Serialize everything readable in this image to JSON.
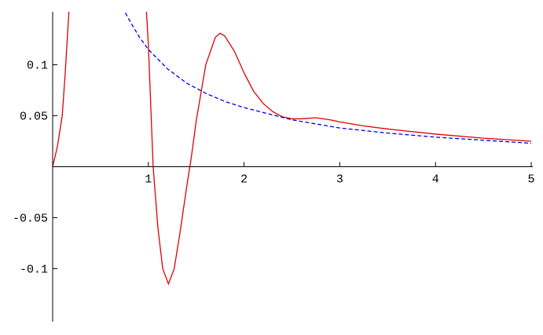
{
  "chart_data": {
    "type": "line",
    "xlim": [
      0,
      5.1
    ],
    "ylim": [
      -0.152,
      0.152
    ],
    "xticks": [
      1,
      2,
      3,
      4,
      5
    ],
    "yticks": [
      -0.1,
      -0.05,
      0.05,
      0.1
    ],
    "series": [
      {
        "color": "#e00000",
        "dashed": false,
        "x": [
          0,
          0.05,
          0.1,
          0.13,
          0.17,
          0.5,
          0.98,
          1.0,
          1.05,
          1.1,
          1.15,
          1.21,
          1.27,
          1.33,
          1.4,
          1.45,
          1.5,
          1.6,
          1.7,
          1.75,
          1.8,
          1.9,
          2.0,
          2.1,
          2.2,
          2.3,
          2.4,
          2.5,
          2.6,
          2.75,
          2.9,
          3.0,
          3.25,
          3.5,
          4.0,
          4.5,
          5.0
        ],
        "values": [
          0,
          0.02,
          0.05,
          0.09,
          0.152,
          null,
          0.152,
          0.12,
          0.0,
          -0.06,
          -0.1,
          -0.115,
          -0.1,
          -0.065,
          -0.02,
          0.01,
          0.045,
          0.1,
          0.127,
          0.131,
          0.128,
          0.113,
          0.092,
          0.074,
          0.062,
          0.054,
          0.049,
          0.047,
          0.047,
          0.048,
          0.046,
          0.044,
          0.04,
          0.037,
          0.032,
          0.028,
          0.025
        ]
      },
      {
        "color": "#0000e0",
        "dashed": true,
        "x": [
          0.76,
          0.8,
          0.9,
          1,
          1.2,
          1.4,
          1.6,
          1.8,
          2,
          2.5,
          3,
          3.5,
          4,
          4.5,
          5
        ],
        "values": [
          0.151,
          0.144,
          0.128,
          0.115,
          0.096,
          0.082,
          0.072,
          0.064,
          0.058,
          0.046,
          0.038,
          0.033,
          0.029,
          0.026,
          0.023
        ]
      }
    ]
  }
}
